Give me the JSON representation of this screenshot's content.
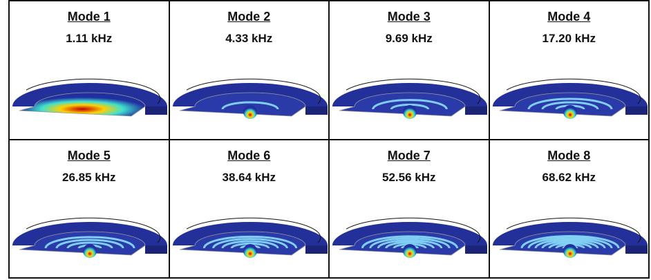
{
  "panels": [
    {
      "title": "Mode 1",
      "frequency": "1.11 kHz"
    },
    {
      "title": "Mode 2",
      "frequency": "4.33 kHz"
    },
    {
      "title": "Mode 3",
      "frequency": "9.69 kHz"
    },
    {
      "title": "Mode 4",
      "frequency": "17.20 kHz"
    },
    {
      "title": "Mode 5",
      "frequency": "26.85 kHz"
    },
    {
      "title": "Mode 6",
      "frequency": "38.64 kHz"
    },
    {
      "title": "Mode 7",
      "frequency": "52.56 kHz"
    },
    {
      "title": "Mode 8",
      "frequency": "68.62 kHz"
    }
  ]
}
